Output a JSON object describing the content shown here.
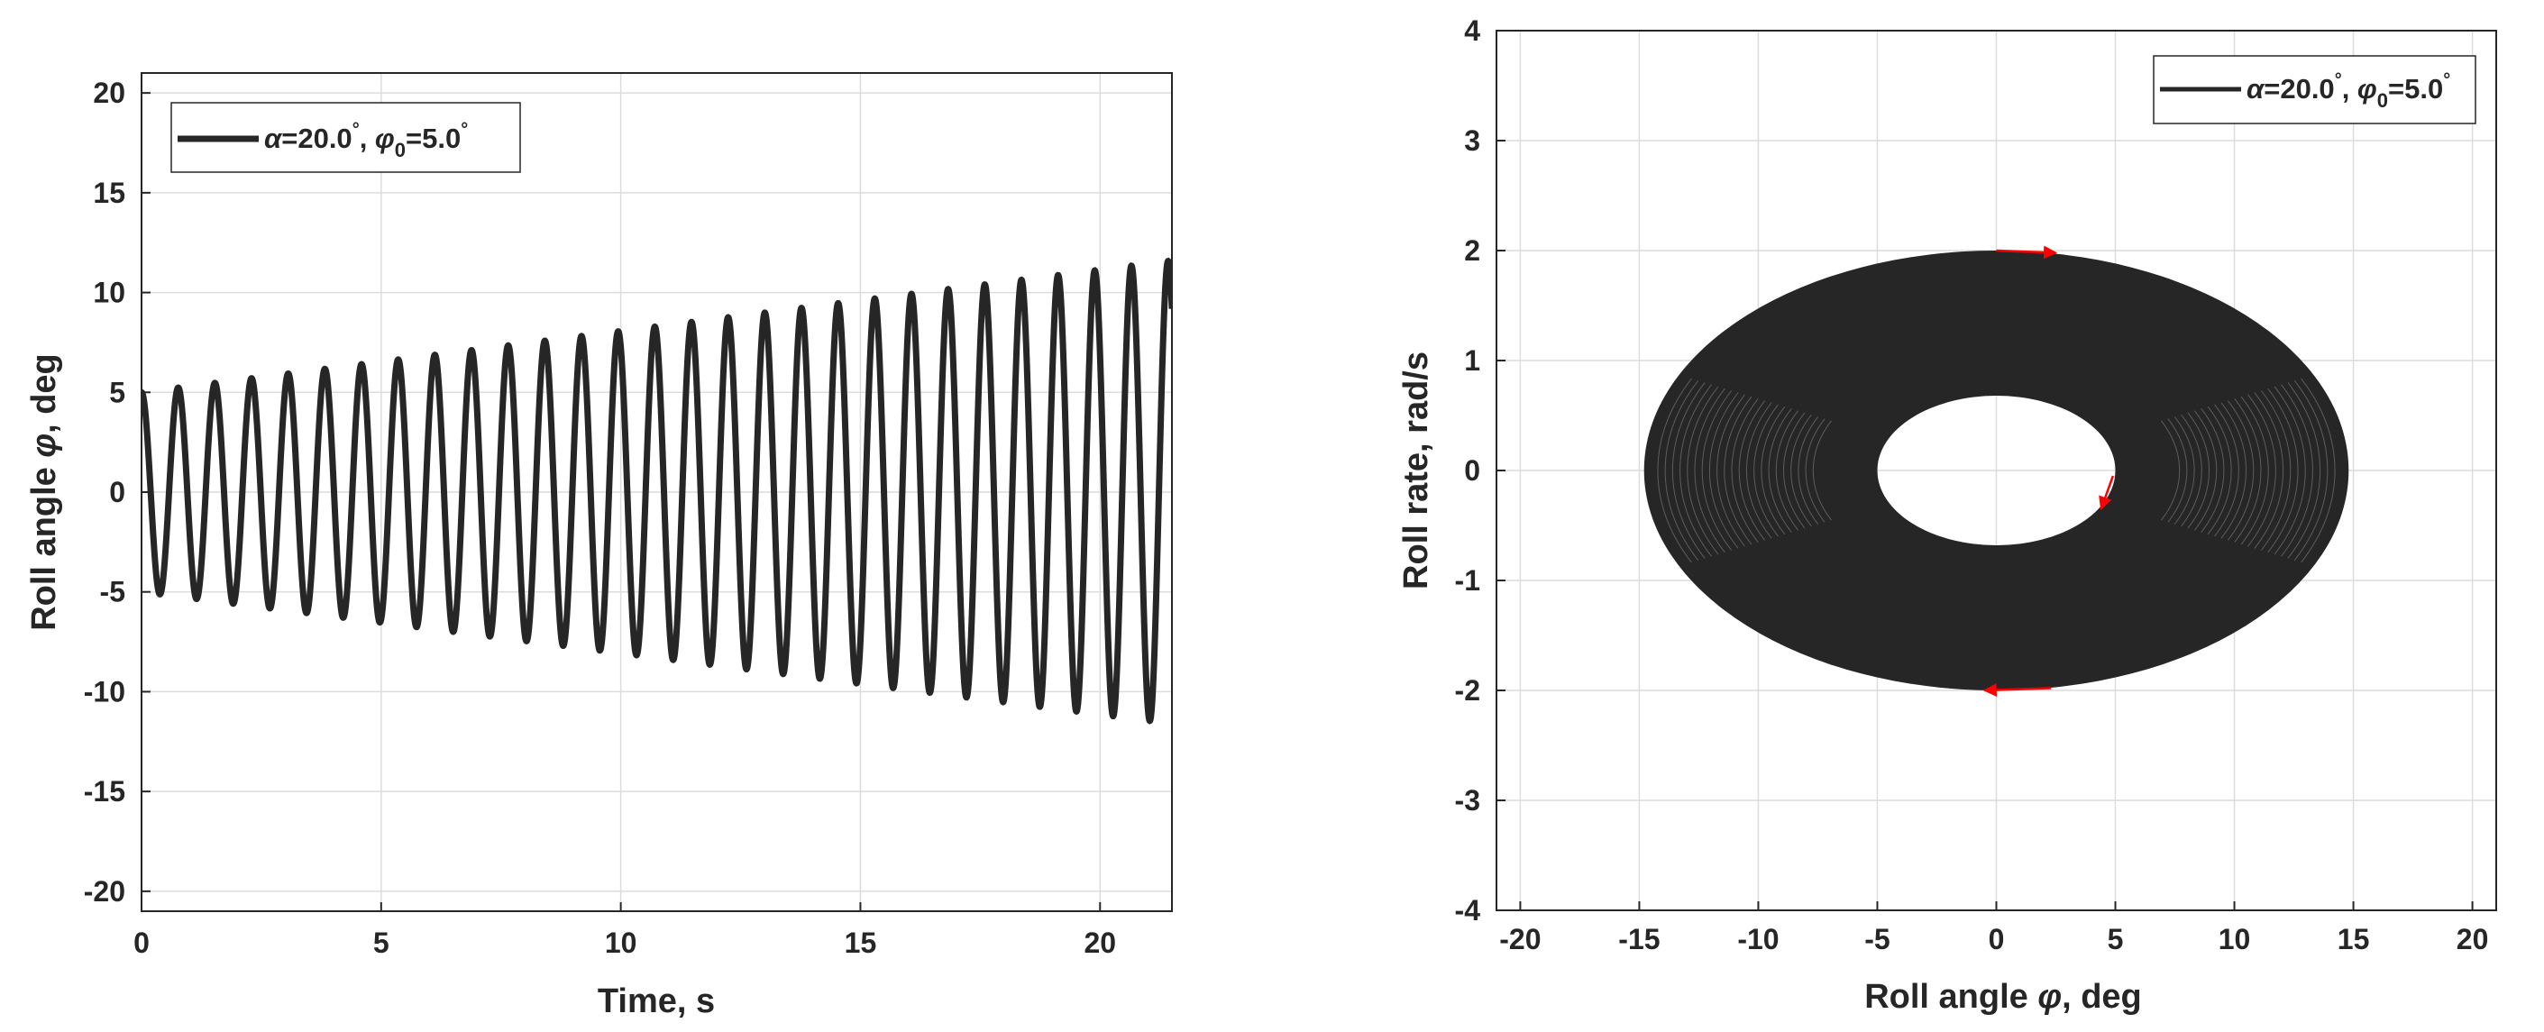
{
  "chart_data": [
    {
      "type": "line",
      "xlabel": "Time, s",
      "ylabel_main": "Roll angle ",
      "ylabel_symbol": "φ",
      "ylabel_unit": ", deg",
      "xlim": [
        0,
        21.5
      ],
      "ylim": [
        -21,
        21
      ],
      "x_ticks": [
        0,
        5,
        10,
        15,
        20
      ],
      "y_ticks": [
        20,
        15,
        10,
        5,
        0,
        -5,
        -10,
        -15,
        -20
      ],
      "grid": true,
      "legend": {
        "placement": "top-left",
        "entries": [
          {
            "alpha_sym": "α",
            "alpha_val": "=20.0",
            "deg": "°",
            "sep": ", ",
            "phi_sym": "φ",
            "phi_sub": "0",
            "phi_val": "=5.0",
            "deg2": "°"
          }
        ]
      },
      "series": [
        {
          "color": "#262626",
          "amplitude_start": 5.0,
          "amplitude_end": 11.6,
          "period_s": 0.765,
          "phase": "cos",
          "x_end": 21.5
        }
      ]
    },
    {
      "type": "line",
      "xlabel_main": "Roll angle ",
      "xlabel_symbol": "φ",
      "xlabel_unit": ", deg",
      "ylabel": "Roll rate, rad/s",
      "xlim": [
        -21,
        21
      ],
      "ylim": [
        -4,
        4
      ],
      "x_ticks": [
        -20,
        -15,
        -10,
        -5,
        0,
        5,
        10,
        15,
        20
      ],
      "y_ticks": [
        4,
        3,
        2,
        1,
        0,
        -1,
        -2,
        -3,
        -4
      ],
      "grid": true,
      "legend": {
        "placement": "top-right",
        "entries": [
          {
            "alpha_sym": "α",
            "alpha_val": "=20.0",
            "deg": "°",
            "sep": ", ",
            "phi_sym": "φ",
            "phi_sub": "0",
            "phi_val": "=5.0",
            "deg2": "°"
          }
        ]
      },
      "series": [
        {
          "color": "#262626",
          "inner_phi": 5.0,
          "outer_phi": 14.8,
          "rate_peak": 2.0,
          "inner_rate": 0.68
        }
      ],
      "arrows": [
        {
          "color": "#ff0000",
          "from": [
            0,
            2.0
          ],
          "to": [
            2.5,
            1.98
          ]
        },
        {
          "color": "#ff0000",
          "from": [
            4.9,
            -0.05
          ],
          "to": [
            4.4,
            -0.35
          ]
        },
        {
          "color": "#ff0000",
          "from": [
            2.3,
            -1.98
          ],
          "to": [
            -0.5,
            -2.0
          ]
        }
      ]
    }
  ]
}
